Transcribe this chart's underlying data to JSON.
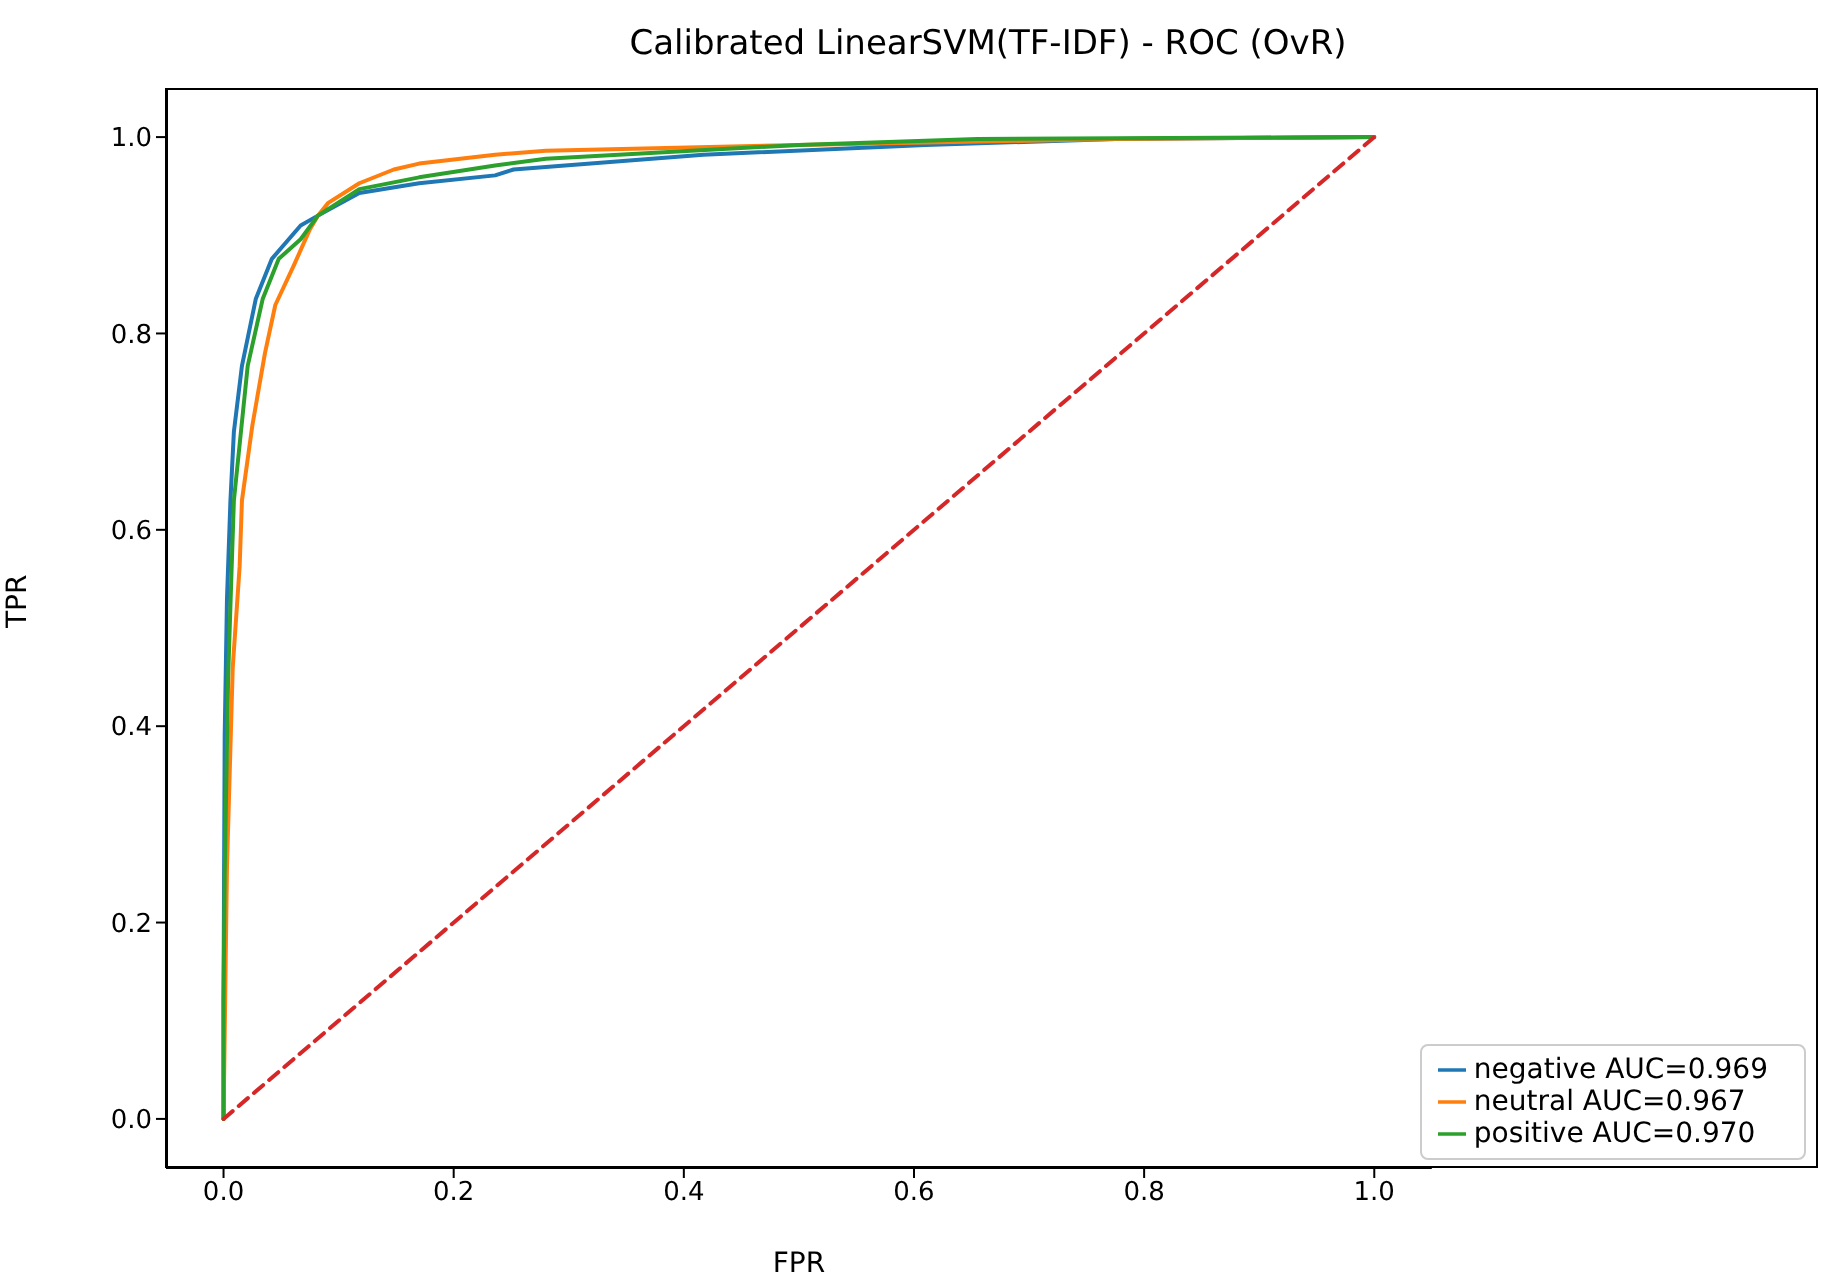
{
  "chart_data": {
    "type": "line",
    "title": "Calibrated LinearSVM(TF-IDF) - ROC (OvR)",
    "xlabel": "FPR",
    "ylabel": "TPR",
    "xlim": [
      -0.05,
      1.05
    ],
    "ylim": [
      -0.05,
      1.05
    ],
    "xticks": [
      {
        "value": 0,
        "label": "0.0"
      },
      {
        "value": 0.2,
        "label": "0.2"
      },
      {
        "value": 0.4,
        "label": "0.4"
      },
      {
        "value": 0.6,
        "label": "0.6"
      },
      {
        "value": 0.8,
        "label": "0.8"
      },
      {
        "value": 1,
        "label": "1.0"
      }
    ],
    "yticks": [
      {
        "value": 0,
        "label": "0.0"
      },
      {
        "value": 0.2,
        "label": "0.2"
      },
      {
        "value": 0.4,
        "label": "0.4"
      },
      {
        "value": 0.6,
        "label": "0.6"
      },
      {
        "value": 0.8,
        "label": "0.8"
      },
      {
        "value": 1,
        "label": "1.0"
      }
    ],
    "legend": "bottom right",
    "marker": "none",
    "line_style": "solid",
    "series": [
      {
        "name": "negative AUC=0.969",
        "color": "#1f77b4",
        "x": [
          0,
          0,
          0.001,
          0.003,
          0.006,
          0.009,
          0.016,
          0.028,
          0.042,
          0.067,
          0.082,
          0.118,
          0.17,
          0.236,
          0.252,
          0.417,
          0.61,
          0.775,
          1
        ],
        "values": [
          0,
          0.12,
          0.39,
          0.53,
          0.63,
          0.7,
          0.767,
          0.835,
          0.876,
          0.91,
          0.92,
          0.943,
          0.953,
          0.961,
          0.967,
          0.982,
          0.992,
          0.998,
          1
        ]
      },
      {
        "name": "neutral AUC=0.967",
        "color": "#ff7f0e",
        "x": [
          0,
          0.003,
          0.008,
          0.014,
          0.016,
          0.025,
          0.036,
          0.045,
          0.061,
          0.075,
          0.082,
          0.091,
          0.118,
          0.148,
          0.17,
          0.236,
          0.28,
          0.5,
          0.775,
          1
        ],
        "values": [
          0,
          0.257,
          0.46,
          0.563,
          0.63,
          0.706,
          0.78,
          0.829,
          0.869,
          0.906,
          0.92,
          0.933,
          0.953,
          0.967,
          0.973,
          0.982,
          0.986,
          0.992,
          0.998,
          1
        ]
      },
      {
        "name": "positive AUC=0.970",
        "color": "#2ca02c",
        "x": [
          0,
          0,
          0.001,
          0.004,
          0.007,
          0.009,
          0.021,
          0.034,
          0.048,
          0.067,
          0.082,
          0.118,
          0.17,
          0.236,
          0.28,
          0.5,
          0.655,
          1
        ],
        "values": [
          0,
          0.12,
          0.25,
          0.45,
          0.56,
          0.63,
          0.767,
          0.835,
          0.876,
          0.896,
          0.92,
          0.947,
          0.959,
          0.971,
          0.978,
          0.992,
          0.998,
          1
        ]
      },
      {
        "color": "#d62728",
        "line_style": "dashed",
        "x": [
          0,
          1
        ],
        "values": [
          0,
          1
        ]
      }
    ]
  }
}
